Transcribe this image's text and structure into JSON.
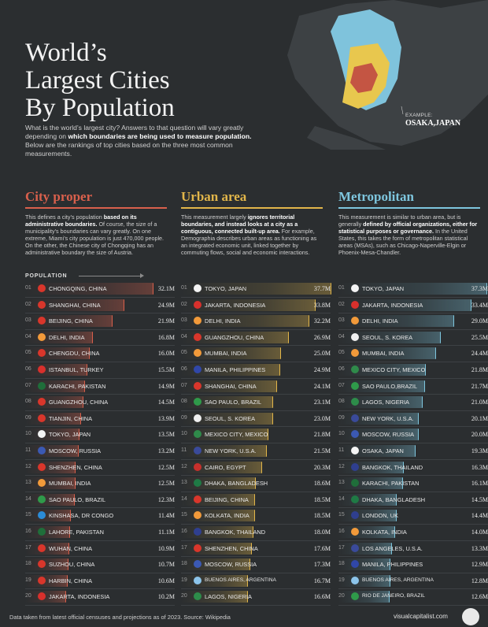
{
  "header": {
    "title_lines": [
      "World’s",
      "Largest Cities",
      "By Population"
    ],
    "intro_pre": "What is the world’s largest city? Answers to that question will vary greatly depending on ",
    "intro_bold": "which boundaries are being used to measure population.",
    "intro_post": " Below are the rankings of top cities based on the three most common measurements."
  },
  "map": {
    "example_label": "EXAMPLE:",
    "example_city": "OSAKA,JAPAN",
    "colors": {
      "metro": "#7fc3dc",
      "urban": "#e8c74e",
      "proper": "#c45543",
      "land": "#3d4144"
    }
  },
  "population_label": "POPULATION",
  "colors": {
    "city_proper": "#d9604c",
    "urban_area": "#e2b64a",
    "metropolitan": "#7ec6de"
  },
  "columns": [
    {
      "key": "city_proper",
      "heading": "City proper",
      "desc_pre": "This defines a city’s population ",
      "desc_bold": "based on its administrative boundaries.",
      "desc_post": " Of course, the size of a municipality’s boundaries can vary greatly. On one extreme, Miami’s city population is just 470,000 people. On the other, the Chinese city of Chongqing has an administrative boundary the size of Austria.",
      "rows": [
        {
          "rank": "01",
          "city": "CHONGQING, CHINA",
          "pop": "32.1M",
          "value": 32.1,
          "flag": "china-flag-icon"
        },
        {
          "rank": "02",
          "city": "SHANGHAI, CHINA",
          "pop": "24.9M",
          "value": 24.9,
          "flag": "china-flag-icon"
        },
        {
          "rank": "03",
          "city": "BEIJING, CHINA",
          "pop": "21.9M",
          "value": 21.9,
          "flag": "china-flag-icon"
        },
        {
          "rank": "04",
          "city": "DELHI, INDIA",
          "pop": "16.8M",
          "value": 16.8,
          "flag": "india-flag-icon"
        },
        {
          "rank": "05",
          "city": "CHENGDU, CHINA",
          "pop": "16.0M",
          "value": 16.0,
          "flag": "china-flag-icon"
        },
        {
          "rank": "06",
          "city": "ISTANBUL, TURKEY",
          "pop": "15.5M",
          "value": 15.5,
          "flag": "turkey-flag-icon"
        },
        {
          "rank": "07",
          "city": "KARACHI, PAKISTAN",
          "pop": "14.9M",
          "value": 14.9,
          "flag": "pakistan-flag-icon"
        },
        {
          "rank": "08",
          "city": "GUANGZHOU, CHINA",
          "pop": "14.5M",
          "value": 14.5,
          "flag": "china-flag-icon"
        },
        {
          "rank": "09",
          "city": "TIANJIN, CHINA",
          "pop": "13.9M",
          "value": 13.9,
          "flag": "china-flag-icon"
        },
        {
          "rank": "10",
          "city": "TOKYO, JAPAN",
          "pop": "13.5M",
          "value": 13.5,
          "flag": "japan-flag-icon"
        },
        {
          "rank": "11",
          "city": "MOSCOW, RUSSIA",
          "pop": "13.2M",
          "value": 13.2,
          "flag": "russia-flag-icon"
        },
        {
          "rank": "12",
          "city": "SHENZHEN, CHINA",
          "pop": "12.5M",
          "value": 12.5,
          "flag": "china-flag-icon"
        },
        {
          "rank": "13",
          "city": "MUMBAI, INDIA",
          "pop": "12.5M",
          "value": 12.5,
          "flag": "india-flag-icon"
        },
        {
          "rank": "14",
          "city": "SAO PAULO, BRAZIL",
          "pop": "12.3M",
          "value": 12.3,
          "flag": "brazil-flag-icon"
        },
        {
          "rank": "15",
          "city": "KINSHASA, DR CONGO",
          "pop": "11.4M",
          "value": 11.4,
          "flag": "dr-congo-flag-icon"
        },
        {
          "rank": "16",
          "city": "LAHORE, PAKISTAN",
          "pop": "11.1M",
          "value": 11.1,
          "flag": "pakistan-flag-icon"
        },
        {
          "rank": "17",
          "city": "WUHAN, CHINA",
          "pop": "10.9M",
          "value": 10.9,
          "flag": "china-flag-icon"
        },
        {
          "rank": "18",
          "city": "SUZHOU, CHINA",
          "pop": "10.7M",
          "value": 10.7,
          "flag": "china-flag-icon"
        },
        {
          "rank": "19",
          "city": "HARBIN, CHINA",
          "pop": "10.6M",
          "value": 10.6,
          "flag": "china-flag-icon"
        },
        {
          "rank": "20",
          "city": "JAKARTA, INDONESIA",
          "pop": "10.2M",
          "value": 10.2,
          "flag": "indonesia-flag-icon"
        }
      ]
    },
    {
      "key": "urban_area",
      "heading": "Urban area",
      "desc_pre": "This measurement largely ",
      "desc_bold": "ignores territorial boundaries, and instead looks at a city as a contiguous, connected built-up area.",
      "desc_post": " For example, Demographia describes urban areas as functioning as an integrated economic unit, linked together by commuting flows, social and economic interactions.",
      "rows": [
        {
          "rank": "01",
          "city": "TOKYO, JAPAN",
          "pop": "37.7M",
          "value": 37.7,
          "flag": "japan-flag-icon"
        },
        {
          "rank": "02",
          "city": "JAKARTA, INDONESIA",
          "pop": "33.8M",
          "value": 33.8,
          "flag": "indonesia-flag-icon"
        },
        {
          "rank": "03",
          "city": "DELHI, INDIA",
          "pop": "32.2M",
          "value": 32.2,
          "flag": "india-flag-icon"
        },
        {
          "rank": "04",
          "city": "GUANGZHOU, CHINA",
          "pop": "26.9M",
          "value": 26.9,
          "flag": "china-flag-icon"
        },
        {
          "rank": "05",
          "city": "MUMBAI, INDIA",
          "pop": "25.0M",
          "value": 25.0,
          "flag": "india-flag-icon"
        },
        {
          "rank": "06",
          "city": "MANILA, PHILIPPINES",
          "pop": "24.9M",
          "value": 24.9,
          "flag": "philippines-flag-icon"
        },
        {
          "rank": "07",
          "city": "SHANGHAI, CHINA",
          "pop": "24.1M",
          "value": 24.1,
          "flag": "china-flag-icon"
        },
        {
          "rank": "08",
          "city": "SAO PAULO, BRAZIL",
          "pop": "23.1M",
          "value": 23.1,
          "flag": "brazil-flag-icon"
        },
        {
          "rank": "09",
          "city": "SEOUL, S. KOREA",
          "pop": "23.0M",
          "value": 23.0,
          "flag": "south-korea-flag-icon"
        },
        {
          "rank": "10",
          "city": "MEXICO CITY, MEXICO",
          "pop": "21.8M",
          "value": 21.8,
          "flag": "mexico-flag-icon"
        },
        {
          "rank": "11",
          "city": "NEW YORK, U.S.A.",
          "pop": "21.5M",
          "value": 21.5,
          "flag": "usa-flag-icon"
        },
        {
          "rank": "12",
          "city": "CAIRO, EGYPT",
          "pop": "20.3M",
          "value": 20.3,
          "flag": "egypt-flag-icon"
        },
        {
          "rank": "13",
          "city": "DHAKA, BANGLADESH",
          "pop": "18.6M",
          "value": 18.6,
          "flag": "bangladesh-flag-icon"
        },
        {
          "rank": "14",
          "city": "BEIJING, CHINA",
          "pop": "18.5M",
          "value": 18.5,
          "flag": "china-flag-icon"
        },
        {
          "rank": "15",
          "city": "KOLKATA, INDIA",
          "pop": "18.5M",
          "value": 18.5,
          "flag": "india-flag-icon"
        },
        {
          "rank": "16",
          "city": "BANGKOK, THAILAND",
          "pop": "18.0M",
          "value": 18.0,
          "flag": "thailand-flag-icon"
        },
        {
          "rank": "17",
          "city": "SHENZHEN, CHINA",
          "pop": "17.6M",
          "value": 17.6,
          "flag": "china-flag-icon"
        },
        {
          "rank": "18",
          "city": "MOSCOW, RUSSIA",
          "pop": "17.3M",
          "value": 17.3,
          "flag": "russia-flag-icon"
        },
        {
          "rank": "19",
          "city": "BUENOS AIRES, ARGENTINA",
          "pop": "16.7M",
          "value": 16.7,
          "flag": "argentina-flag-icon"
        },
        {
          "rank": "20",
          "city": "LAGOS, NIGERIA",
          "pop": "16.6M",
          "value": 16.6,
          "flag": "nigeria-flag-icon"
        }
      ]
    },
    {
      "key": "metropolitan",
      "heading": "Metropolitan",
      "desc_pre": "This measurement is similar to urban area, but is generally ",
      "desc_bold": "defined by official organizations, either for statistical purposes or governance.",
      "desc_post": " In the United States, this takes the form of metropolitan statistical areas (MSAs), such as Chicago-Naperville-Elgin or Phoenix-Mesa-Chandler.",
      "rows": [
        {
          "rank": "01",
          "city": "TOKYO, JAPAN",
          "pop": "37.3M",
          "value": 37.3,
          "flag": "japan-flag-icon"
        },
        {
          "rank": "02",
          "city": "JAKARTA, INDONESIA",
          "pop": "33.4M",
          "value": 33.4,
          "flag": "indonesia-flag-icon"
        },
        {
          "rank": "03",
          "city": "DELHI, INDIA",
          "pop": "29.0M",
          "value": 29.0,
          "flag": "india-flag-icon"
        },
        {
          "rank": "04",
          "city": "SEOUL, S. KOREA",
          "pop": "25.5M",
          "value": 25.5,
          "flag": "south-korea-flag-icon"
        },
        {
          "rank": "05",
          "city": "MUMBAI, INDIA",
          "pop": "24.4M",
          "value": 24.4,
          "flag": "india-flag-icon"
        },
        {
          "rank": "06",
          "city": "MEXICO CITY, MEXICO",
          "pop": "21.8M",
          "value": 21.8,
          "flag": "mexico-flag-icon"
        },
        {
          "rank": "07",
          "city": "SAO PAULO,BRAZIL",
          "pop": "21.7M",
          "value": 21.7,
          "flag": "brazil-flag-icon"
        },
        {
          "rank": "08",
          "city": "LAGOS, NIGERIA",
          "pop": "21.0M",
          "value": 21.0,
          "flag": "nigeria-flag-icon"
        },
        {
          "rank": "09",
          "city": "NEW YORK, U.S.A.",
          "pop": "20.1M",
          "value": 20.1,
          "flag": "usa-flag-icon"
        },
        {
          "rank": "10",
          "city": "MOSCOW, RUSSIA",
          "pop": "20.0M",
          "value": 20.0,
          "flag": "russia-flag-icon"
        },
        {
          "rank": "11",
          "city": "OSAKA, JAPAN",
          "pop": "19.3M",
          "value": 19.3,
          "flag": "japan-flag-icon"
        },
        {
          "rank": "12",
          "city": "BANGKOK, THAILAND",
          "pop": "16.3M",
          "value": 16.3,
          "flag": "thailand-flag-icon"
        },
        {
          "rank": "13",
          "city": "KARACHI, PAKISTAN",
          "pop": "16.1M",
          "value": 16.1,
          "flag": "pakistan-flag-icon"
        },
        {
          "rank": "14",
          "city": "DHAKA, BANGLADESH",
          "pop": "14.5M",
          "value": 14.5,
          "flag": "bangladesh-flag-icon"
        },
        {
          "rank": "15",
          "city": "LONDON, UK",
          "pop": "14.4M",
          "value": 14.4,
          "flag": "uk-flag-icon"
        },
        {
          "rank": "16",
          "city": "KOLKATA, INDIA",
          "pop": "14.0M",
          "value": 14.0,
          "flag": "india-flag-icon"
        },
        {
          "rank": "17",
          "city": "LOS ANGELES, U.S.A.",
          "pop": "13.3M",
          "value": 13.3,
          "flag": "usa-flag-icon"
        },
        {
          "rank": "18",
          "city": "MANILA, PHILIPPINES",
          "pop": "12.9M",
          "value": 12.9,
          "flag": "philippines-flag-icon"
        },
        {
          "rank": "19",
          "city": "BUENOS AIRES, ARGENTINA",
          "pop": "12.8M",
          "value": 12.8,
          "flag": "argentina-flag-icon"
        },
        {
          "rank": "20",
          "city": "RIO DE JANEIRO, BRAZIL",
          "pop": "12.6M",
          "value": 12.6,
          "flag": "brazil-flag-icon"
        }
      ]
    }
  ],
  "flag_colors": {
    "china-flag-icon": "#d9362b",
    "india-flag-icon": "#f29a3a",
    "turkey-flag-icon": "#d8302c",
    "pakistan-flag-icon": "#1f6e3a",
    "japan-flag-icon": "#f4f4f4",
    "russia-flag-icon": "#3b59b3",
    "brazil-flag-icon": "#2f9a4a",
    "dr-congo-flag-icon": "#2b8cd8",
    "indonesia-flag-icon": "#d8302c",
    "philippines-flag-icon": "#3047a8",
    "south-korea-flag-icon": "#f0f0f0",
    "mexico-flag-icon": "#2f8a4a",
    "usa-flag-icon": "#3a4a9a",
    "egypt-flag-icon": "#c8302c",
    "bangladesh-flag-icon": "#1f7a45",
    "thailand-flag-icon": "#2f3f8f",
    "argentina-flag-icon": "#8cc4ea",
    "nigeria-flag-icon": "#2d8c4a",
    "uk-flag-icon": "#2f3f8f"
  },
  "chart_data": [
    {
      "type": "bar",
      "title": "City proper",
      "categories": [
        "CHONGQING, CHINA",
        "SHANGHAI, CHINA",
        "BEIJING, CHINA",
        "DELHI, INDIA",
        "CHENGDU, CHINA",
        "ISTANBUL, TURKEY",
        "KARACHI, PAKISTAN",
        "GUANGZHOU, CHINA",
        "TIANJIN, CHINA",
        "TOKYO, JAPAN",
        "MOSCOW, RUSSIA",
        "SHENZHEN, CHINA",
        "MUMBAI, INDIA",
        "SAO PAULO, BRAZIL",
        "KINSHASA, DR CONGO",
        "LAHORE, PAKISTAN",
        "WUHAN, CHINA",
        "SUZHOU, CHINA",
        "HARBIN, CHINA",
        "JAKARTA, INDONESIA"
      ],
      "values": [
        32.1,
        24.9,
        21.9,
        16.8,
        16.0,
        15.5,
        14.9,
        14.5,
        13.9,
        13.5,
        13.2,
        12.5,
        12.5,
        12.3,
        11.4,
        11.1,
        10.9,
        10.7,
        10.6,
        10.2
      ],
      "xlabel": "POPULATION"
    },
    {
      "type": "bar",
      "title": "Urban area",
      "categories": [
        "TOKYO, JAPAN",
        "JAKARTA, INDONESIA",
        "DELHI, INDIA",
        "GUANGZHOU, CHINA",
        "MUMBAI, INDIA",
        "MANILA, PHILIPPINES",
        "SHANGHAI, CHINA",
        "SAO PAULO, BRAZIL",
        "SEOUL, S. KOREA",
        "MEXICO CITY, MEXICO",
        "NEW YORK, U.S.A.",
        "CAIRO, EGYPT",
        "DHAKA, BANGLADESH",
        "BEIJING, CHINA",
        "KOLKATA, INDIA",
        "BANGKOK, THAILAND",
        "SHENZHEN, CHINA",
        "MOSCOW, RUSSIA",
        "BUENOS AIRES, ARGENTINA",
        "LAGOS, NIGERIA"
      ],
      "values": [
        37.7,
        33.8,
        32.2,
        26.9,
        25.0,
        24.9,
        24.1,
        23.1,
        23.0,
        21.8,
        21.5,
        20.3,
        18.6,
        18.5,
        18.5,
        18.0,
        17.6,
        17.3,
        16.7,
        16.6
      ]
    },
    {
      "type": "bar",
      "title": "Metropolitan",
      "categories": [
        "TOKYO, JAPAN",
        "JAKARTA, INDONESIA",
        "DELHI, INDIA",
        "SEOUL, S. KOREA",
        "MUMBAI, INDIA",
        "MEXICO CITY, MEXICO",
        "SAO PAULO,BRAZIL",
        "LAGOS, NIGERIA",
        "NEW YORK, U.S.A.",
        "MOSCOW, RUSSIA",
        "OSAKA, JAPAN",
        "BANGKOK, THAILAND",
        "KARACHI, PAKISTAN",
        "DHAKA, BANGLADESH",
        "LONDON, UK",
        "KOLKATA, INDIA",
        "LOS ANGELES, U.S.A.",
        "MANILA, PHILIPPINES",
        "BUENOS AIRES, ARGENTINA",
        "RIO DE JANEIRO, BRAZIL"
      ],
      "values": [
        37.3,
        33.4,
        29.0,
        25.5,
        24.4,
        21.8,
        21.7,
        21.0,
        20.1,
        20.0,
        19.3,
        16.3,
        16.1,
        14.5,
        14.4,
        14.0,
        13.3,
        12.9,
        12.8,
        12.6
      ]
    }
  ],
  "footer": {
    "source": "Data taken from latest official censuses and projections as of 2023. Source: Wikipedia",
    "brand": "visualcapitalist.com"
  }
}
